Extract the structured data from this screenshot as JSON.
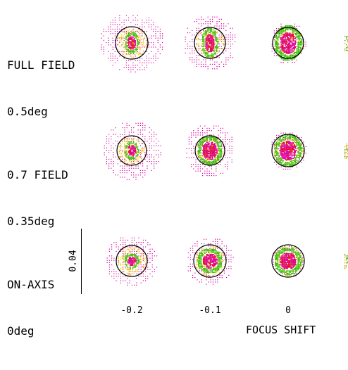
{
  "rows": [
    {
      "name": "full-field",
      "label_line1": "FULL FIELD",
      "label_line2": "0.5deg"
    },
    {
      "name": "field-0-7",
      "label_line1": "0.7 FIELD",
      "label_line2": "0.35deg"
    },
    {
      "name": "on-axis",
      "label_line1": "ON-AXIS",
      "label_line2": "0deg"
    }
  ],
  "columns": [
    {
      "label": "-0.2"
    },
    {
      "label": "-0.1"
    },
    {
      "label": "0"
    }
  ],
  "x_axis_title": "FOCUS SHIFT",
  "scale_bar_label": "0.04",
  "colors": {
    "ray_magenta": "#e000a0",
    "ray_orange": "#f0a000",
    "ray_yellow": "#f0e000",
    "ray_green": "#30c000",
    "ray_red": "#e01000",
    "circle": "#000000"
  }
}
